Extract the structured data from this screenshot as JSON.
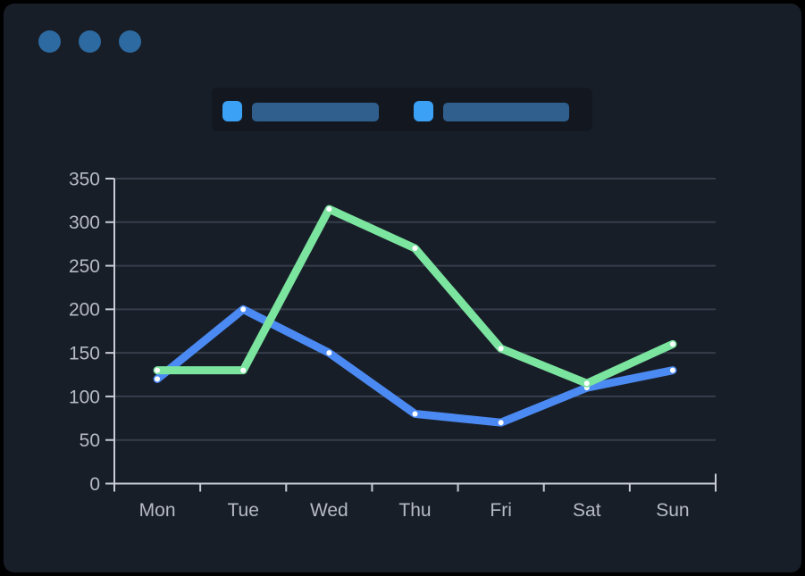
{
  "window": {
    "title": "",
    "controls": [
      {
        "name": "window-control-dot-1",
        "color": "#2d6aa1"
      },
      {
        "name": "window-control-dot-2",
        "color": "#2d6aa1"
      },
      {
        "name": "window-control-dot-3",
        "color": "#2d6aa1"
      }
    ]
  },
  "legend": {
    "items": [
      {
        "label_text": "",
        "redacted": true,
        "swatch_color": "#3ba1f5",
        "bar_color": "#305f8e"
      },
      {
        "label_text": "",
        "redacted": true,
        "swatch_color": "#3ba1f5",
        "bar_color": "#305f8e"
      }
    ]
  },
  "chart_data": {
    "type": "line",
    "categories": [
      "Mon",
      "Tue",
      "Wed",
      "Thu",
      "Fri",
      "Sat",
      "Sun"
    ],
    "series": [
      {
        "name": "series-blue",
        "color": "#4b8af2",
        "values": [
          120,
          200,
          150,
          80,
          70,
          110,
          130
        ]
      },
      {
        "name": "series-green",
        "color": "#7be49f",
        "values": [
          130,
          130,
          315,
          270,
          155,
          115,
          160
        ]
      }
    ],
    "title": "",
    "xlabel": "",
    "ylabel": "",
    "ylim": [
      0,
      350
    ],
    "yticks": [
      0,
      50,
      100,
      150,
      200,
      250,
      300,
      350
    ],
    "grid": "horizontal",
    "legend_position": "top",
    "marker_color": "#ffffff",
    "axis_color": "#c9ccd6",
    "grid_color": "#363d4b",
    "label_color": "#b7bac5"
  }
}
